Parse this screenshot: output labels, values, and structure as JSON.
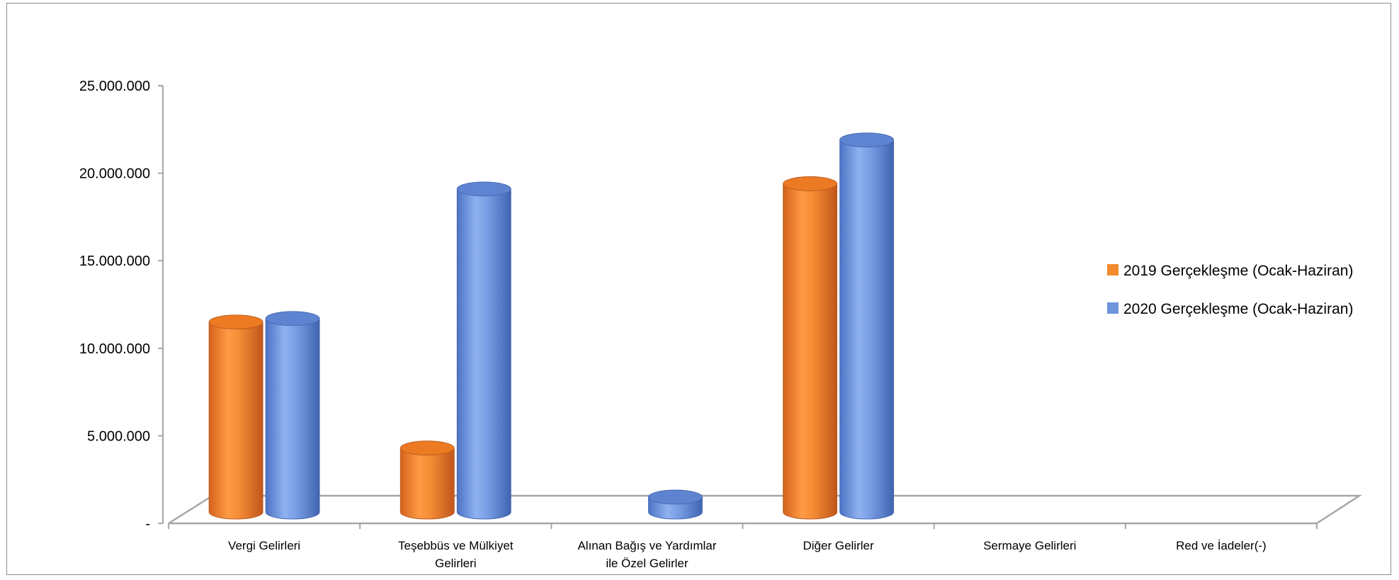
{
  "chart_data": {
    "type": "bar",
    "style": "3d-cylinder",
    "categories": [
      [
        "Vergi Gelirleri"
      ],
      [
        "Teşebbüs ve Mülkiyet",
        "Gelirleri"
      ],
      [
        "Alınan Bağış ve Yardımlar",
        "ile Özel Gelirler"
      ],
      [
        "Diğer Gelirler"
      ],
      [
        "Sermaye Gelirleri"
      ],
      [
        "Red ve İadeler(-)"
      ]
    ],
    "series": [
      {
        "name": "2019 Gerçekleşme (Ocak-Haziran)",
        "color": "#f28a2e",
        "values": [
          11500000,
          4300000,
          0,
          19400000,
          0,
          0
        ]
      },
      {
        "name": "2020 Gerçekleşme (Ocak-Haziran)",
        "color": "#6f95dd",
        "values": [
          11700000,
          19100000,
          1500000,
          21900000,
          0,
          0
        ]
      }
    ],
    "y_tick_labels": [
      "-",
      "5.000.000",
      "10.000.000",
      "15.000.000",
      "20.000.000",
      "25.000.000"
    ],
    "ylim": [
      0,
      25000000
    ],
    "legend_position": "right",
    "grid": false
  }
}
